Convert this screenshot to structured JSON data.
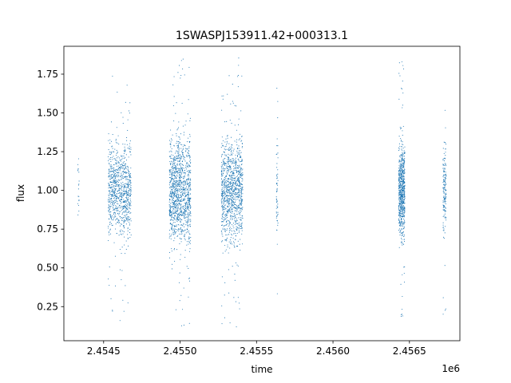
{
  "chart_data": {
    "type": "scatter",
    "title": "1SWASPJ153911.42+000313.1",
    "xlabel": "time",
    "ylabel": "flux",
    "x_offset_label": "1e6",
    "xlim": [
      2.45424,
      2.45683
    ],
    "ylim": [
      0.03,
      1.93
    ],
    "x_ticks": [
      2.4545,
      2.455,
      2.4555,
      2.456,
      2.4565
    ],
    "x_tick_labels": [
      "2.4545",
      "2.4550",
      "2.4555",
      "2.4560",
      "2.4565"
    ],
    "y_ticks": [
      0.25,
      0.5,
      0.75,
      1.0,
      1.25,
      1.5,
      1.75
    ],
    "y_tick_labels": [
      "0.25",
      "0.50",
      "0.75",
      "1.00",
      "1.25",
      "1.50",
      "1.75"
    ],
    "grid": false,
    "marker_color": "#1f77b4",
    "series": [
      {
        "segments": [
          {
            "x_start": 2.45433,
            "x_end": 2.45434,
            "n": 18,
            "center": 1.0,
            "spread": 0.12,
            "min": 0.75,
            "max": 1.35
          },
          {
            "x_start": 2.45453,
            "x_end": 2.45468,
            "n": 900,
            "center": 1.0,
            "spread": 0.14,
            "min": 0.12,
            "max": 1.85
          },
          {
            "x_start": 2.45493,
            "x_end": 2.45507,
            "n": 1200,
            "center": 1.0,
            "spread": 0.17,
            "min": 0.1,
            "max": 1.86
          },
          {
            "x_start": 2.45527,
            "x_end": 2.45541,
            "n": 1100,
            "center": 1.0,
            "spread": 0.16,
            "min": 0.09,
            "max": 1.86
          },
          {
            "x_start": 2.45563,
            "x_end": 2.45564,
            "n": 60,
            "center": 1.0,
            "spread": 0.14,
            "min": 0.15,
            "max": 1.76
          },
          {
            "x_start": 2.45643,
            "x_end": 2.45647,
            "n": 700,
            "center": 1.0,
            "spread": 0.14,
            "min": 0.14,
            "max": 1.85
          },
          {
            "x_start": 2.45672,
            "x_end": 2.45674,
            "n": 160,
            "center": 1.0,
            "spread": 0.14,
            "min": 0.2,
            "max": 1.76
          }
        ]
      }
    ]
  }
}
